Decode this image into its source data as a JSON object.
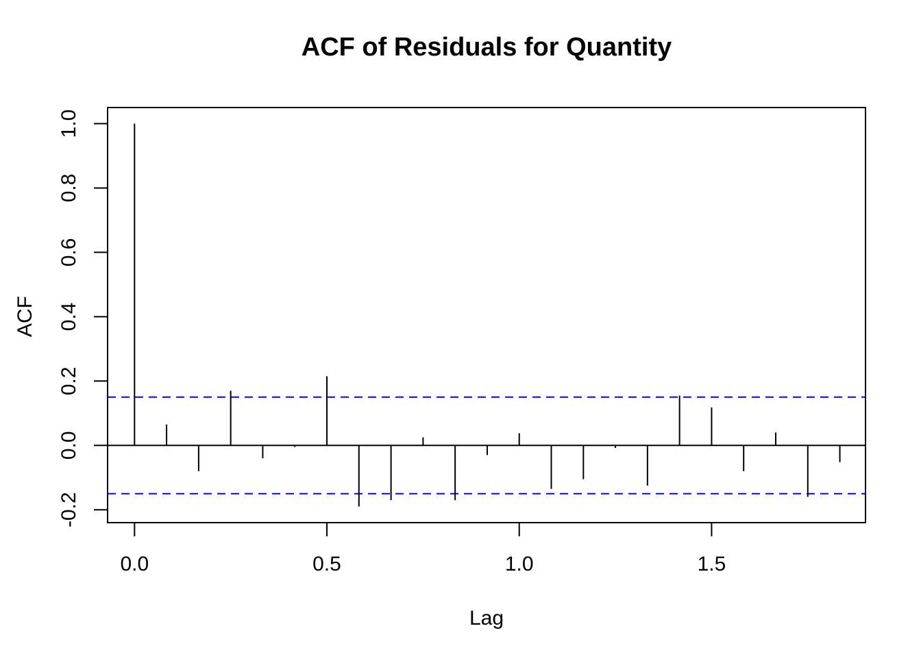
{
  "chart_data": {
    "type": "bar",
    "chart_kind": "acf-correlogram",
    "title": "ACF of Residuals for Quantity",
    "xlabel": "Lag",
    "ylabel": "ACF",
    "xlim": [
      -0.07,
      1.9
    ],
    "ylim": [
      -0.24,
      1.05
    ],
    "xticks": [
      0.0,
      0.5,
      1.0,
      1.5
    ],
    "xtick_labels": [
      "0.0",
      "0.5",
      "1.0",
      "1.5"
    ],
    "yticks": [
      -0.2,
      0.0,
      0.2,
      0.4,
      0.6,
      0.8,
      1.0
    ],
    "ytick_labels": [
      "-0.2",
      "0.0",
      "0.2",
      "0.4",
      "0.6",
      "0.8",
      "1.0"
    ],
    "grid": false,
    "legend": "none",
    "confidence_bounds": [
      0.15,
      -0.15
    ],
    "series": [
      {
        "lags": [
          0.0,
          0.0833,
          0.1667,
          0.25,
          0.3333,
          0.4167,
          0.5,
          0.5833,
          0.6667,
          0.75,
          0.8333,
          0.9167,
          1.0,
          1.0833,
          1.1667,
          1.25,
          1.3333,
          1.4167,
          1.5,
          1.5833,
          1.6667,
          1.75,
          1.8333
        ],
        "values": [
          1.0,
          0.065,
          -0.08,
          0.17,
          -0.04,
          -0.005,
          0.215,
          -0.19,
          -0.17,
          0.025,
          -0.17,
          -0.03,
          0.038,
          -0.135,
          -0.105,
          -0.008,
          -0.125,
          0.155,
          0.118,
          -0.08,
          0.04,
          -0.16,
          -0.052
        ]
      }
    ],
    "colors": {
      "bars": "#000000",
      "bounds": "#0000ff",
      "axes": "#000000"
    }
  }
}
